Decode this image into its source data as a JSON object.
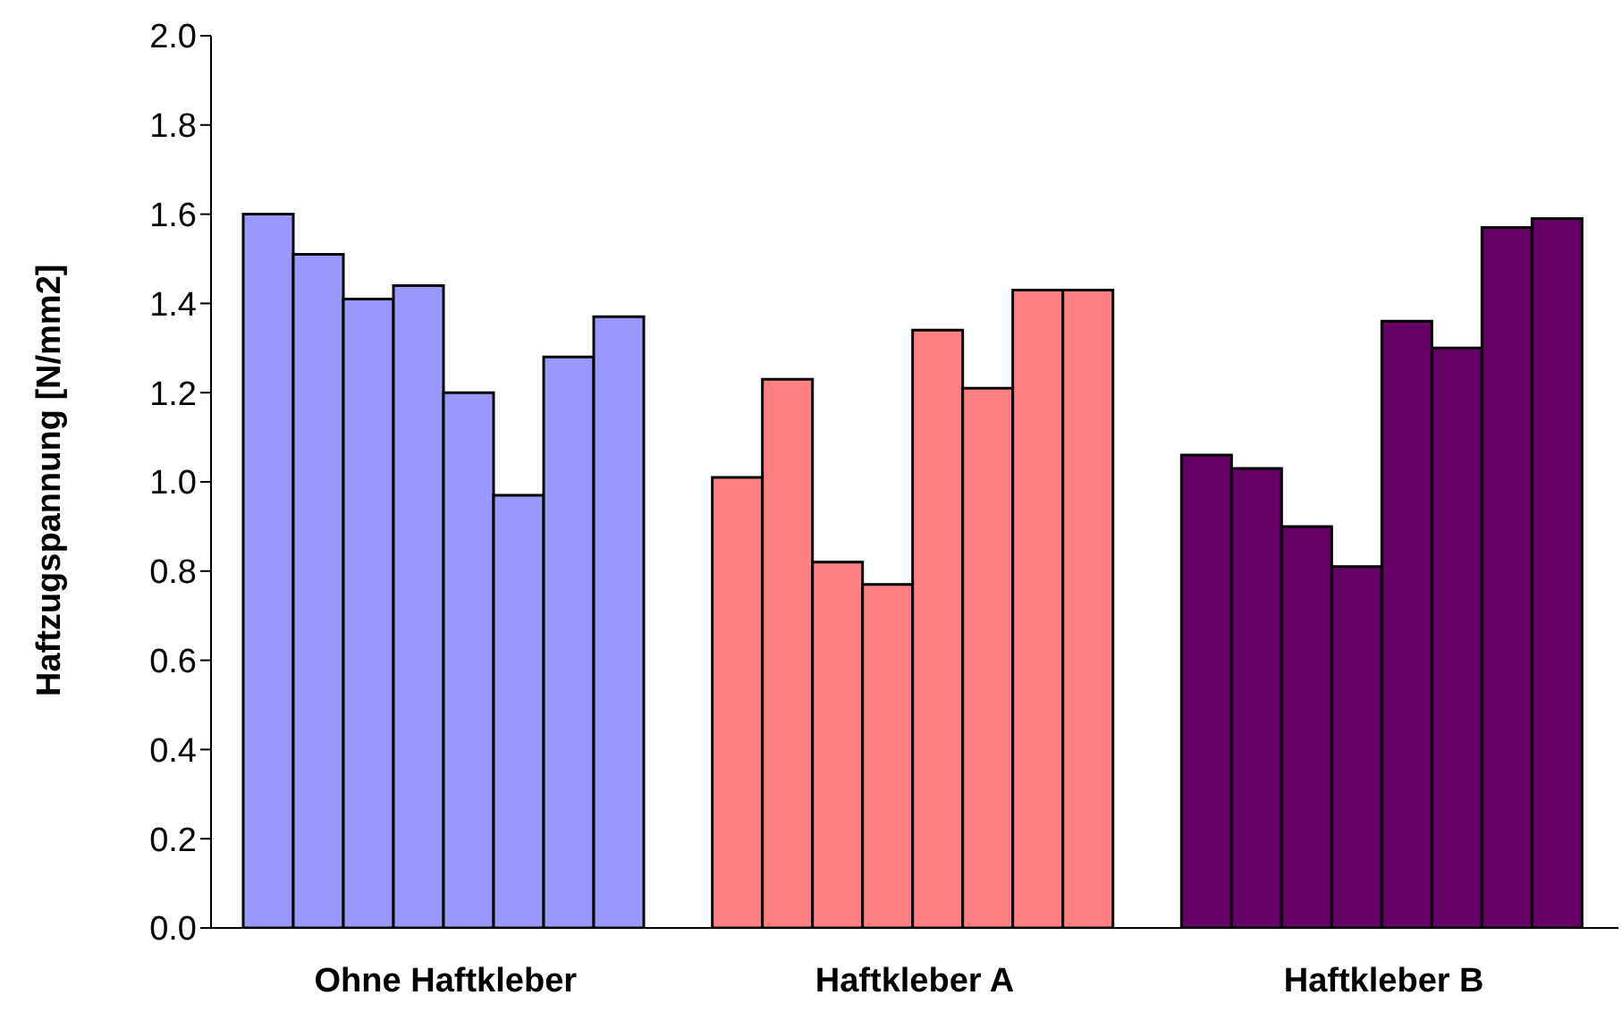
{
  "chart_data": {
    "type": "bar",
    "ylabel": "Haftzugspannung [N/mm2]",
    "categories": [
      "Ohne Haftkleber",
      "Haftkleber A",
      "Haftkleber B"
    ],
    "series": [
      {
        "colors": [
          "#9999ff",
          "#ff8080",
          "#660066"
        ],
        "values": [
          1.6,
          1.01,
          1.06
        ]
      },
      {
        "colors": [
          "#9999ff",
          "#ff8080",
          "#660066"
        ],
        "values": [
          1.51,
          1.23,
          1.03
        ]
      },
      {
        "colors": [
          "#9999ff",
          "#ff8080",
          "#660066"
        ],
        "values": [
          1.41,
          0.82,
          0.9
        ]
      },
      {
        "colors": [
          "#9999ff",
          "#ff8080",
          "#660066"
        ],
        "values": [
          1.44,
          0.77,
          0.81
        ]
      },
      {
        "colors": [
          "#9999ff",
          "#ff8080",
          "#660066"
        ],
        "values": [
          1.2,
          1.34,
          1.36
        ]
      },
      {
        "colors": [
          "#9999ff",
          "#ff8080",
          "#660066"
        ],
        "values": [
          0.97,
          1.21,
          1.3
        ]
      },
      {
        "colors": [
          "#9999ff",
          "#ff8080",
          "#660066"
        ],
        "values": [
          1.28,
          1.43,
          1.57
        ]
      },
      {
        "colors": [
          "#9999ff",
          "#ff8080",
          "#660066"
        ],
        "values": [
          1.37,
          1.43,
          1.59
        ]
      }
    ],
    "ylim": [
      0,
      2
    ],
    "yticks": [
      {
        "value": 0,
        "label": "0.0"
      },
      {
        "value": 0.2,
        "label": "0.2"
      },
      {
        "value": 0.4,
        "label": "0.4"
      },
      {
        "value": 0.6,
        "label": "0.6"
      },
      {
        "value": 0.8,
        "label": "0.8"
      },
      {
        "value": 1,
        "label": "1.0"
      },
      {
        "value": 1.2,
        "label": "1.2"
      },
      {
        "value": 1.4,
        "label": "1.4"
      },
      {
        "value": 1.6,
        "label": "1.6"
      },
      {
        "value": 1.8,
        "label": "1.8"
      },
      {
        "value": 2,
        "label": "2.0"
      }
    ],
    "grid": false,
    "legend": false
  }
}
